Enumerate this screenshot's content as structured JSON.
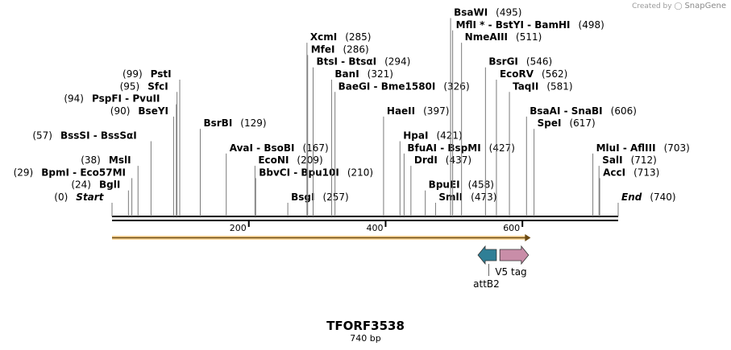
{
  "credit": {
    "prefix": "Created by",
    "brand": "SnapGene"
  },
  "map": {
    "name": "TFORF3538",
    "length_label": "740 bp",
    "length_bp": 740
  },
  "ruler": {
    "ticks": [
      {
        "bp": 200,
        "label": "200"
      },
      {
        "bp": 400,
        "label": "400"
      },
      {
        "bp": 600,
        "label": "600"
      }
    ]
  },
  "sites": [
    {
      "parts": [
        {
          "t": "(0)",
          "k": "pos"
        },
        {
          "t": "Start",
          "k": "ital"
        }
      ],
      "bp": 0,
      "row": 0,
      "side": "left"
    },
    {
      "parts": [
        {
          "t": "(24)",
          "k": "pos"
        },
        {
          "t": "BglI",
          "k": "enz"
        }
      ],
      "bp": 24,
      "row": 1,
      "side": "left"
    },
    {
      "parts": [
        {
          "t": "(29)",
          "k": "pos"
        },
        {
          "t": "BpmI",
          "k": "enz"
        },
        {
          "t": " - ",
          "k": "enz"
        },
        {
          "t": "Eco57MI",
          "k": "enz"
        }
      ],
      "bp": 29,
      "row": 2,
      "side": "left"
    },
    {
      "parts": [
        {
          "t": "(38)",
          "k": "pos"
        },
        {
          "t": "MslI",
          "k": "enz"
        }
      ],
      "bp": 38,
      "row": 3,
      "side": "left"
    },
    {
      "parts": [
        {
          "t": "(57)",
          "k": "pos"
        },
        {
          "t": "BssSI",
          "k": "enz"
        },
        {
          "t": " - ",
          "k": "enz"
        },
        {
          "t": "BssSαI",
          "k": "enz"
        }
      ],
      "bp": 57,
      "row": 5,
      "side": "left"
    },
    {
      "parts": [
        {
          "t": "(90)",
          "k": "pos"
        },
        {
          "t": "BseYI",
          "k": "enz"
        }
      ],
      "bp": 90,
      "row": 7,
      "side": "left"
    },
    {
      "parts": [
        {
          "t": "(94)",
          "k": "pos"
        },
        {
          "t": "PspFI",
          "k": "enz"
        },
        {
          "t": " - ",
          "k": "enz"
        },
        {
          "t": "PvuII",
          "k": "enz"
        }
      ],
      "bp": 94,
      "row": 8,
      "side": "left"
    },
    {
      "parts": [
        {
          "t": "(95)",
          "k": "pos"
        },
        {
          "t": "SfcI",
          "k": "enz"
        }
      ],
      "bp": 95,
      "row": 9,
      "side": "left"
    },
    {
      "parts": [
        {
          "t": "(99)",
          "k": "pos"
        },
        {
          "t": "PstI",
          "k": "enz"
        }
      ],
      "bp": 99,
      "row": 10,
      "side": "left"
    },
    {
      "parts": [
        {
          "t": "BsrBI",
          "k": "enz"
        },
        {
          "t": "(129)",
          "k": "pos"
        }
      ],
      "bp": 129,
      "row": 6,
      "side": "right"
    },
    {
      "parts": [
        {
          "t": "AvaI",
          "k": "enz"
        },
        {
          "t": " - ",
          "k": "enz"
        },
        {
          "t": "BsoBI",
          "k": "enz"
        },
        {
          "t": "(167)",
          "k": "pos"
        }
      ],
      "bp": 167,
      "row": 4,
      "side": "right"
    },
    {
      "parts": [
        {
          "t": "EcoNI",
          "k": "enz"
        },
        {
          "t": "(209)",
          "k": "pos"
        }
      ],
      "bp": 209,
      "row": 3,
      "side": "right"
    },
    {
      "parts": [
        {
          "t": "BbvCI",
          "k": "enz"
        },
        {
          "t": " - ",
          "k": "enz"
        },
        {
          "t": "Bpu10I",
          "k": "enz"
        },
        {
          "t": "(210)",
          "k": "pos"
        }
      ],
      "bp": 210,
      "row": 2,
      "side": "right",
      "offset": true
    },
    {
      "parts": [
        {
          "t": "BsgI",
          "k": "enz"
        },
        {
          "t": "(257)",
          "k": "pos"
        }
      ],
      "bp": 257,
      "row": 0,
      "side": "right"
    },
    {
      "parts": [
        {
          "t": "XcmI",
          "k": "enz"
        },
        {
          "t": "(285)",
          "k": "pos"
        }
      ],
      "bp": 285,
      "row": 13,
      "side": "right"
    },
    {
      "parts": [
        {
          "t": "MfeI",
          "k": "enz"
        },
        {
          "t": "(286)",
          "k": "pos"
        }
      ],
      "bp": 286,
      "row": 12,
      "side": "right"
    },
    {
      "parts": [
        {
          "t": "BtsI",
          "k": "enz"
        },
        {
          "t": " - ",
          "k": "enz"
        },
        {
          "t": "BtsαI",
          "k": "enz"
        },
        {
          "t": "(294)",
          "k": "pos"
        }
      ],
      "bp": 294,
      "row": 11,
      "side": "right"
    },
    {
      "parts": [
        {
          "t": "BanI",
          "k": "enz"
        },
        {
          "t": "(321)",
          "k": "pos"
        }
      ],
      "bp": 321,
      "row": 10,
      "side": "right"
    },
    {
      "parts": [
        {
          "t": "BaeGI",
          "k": "enz"
        },
        {
          "t": " - ",
          "k": "enz"
        },
        {
          "t": "Bme1580I",
          "k": "enz"
        },
        {
          "t": "(326)",
          "k": "pos"
        }
      ],
      "bp": 326,
      "row": 9,
      "side": "right"
    },
    {
      "parts": [
        {
          "t": "HaeII",
          "k": "enz"
        },
        {
          "t": "(397)",
          "k": "pos"
        }
      ],
      "bp": 397,
      "row": 7,
      "side": "right"
    },
    {
      "parts": [
        {
          "t": "HpaI",
          "k": "enz"
        },
        {
          "t": "(421)",
          "k": "pos"
        }
      ],
      "bp": 421,
      "row": 5,
      "side": "right"
    },
    {
      "parts": [
        {
          "t": "BfuAI",
          "k": "enz"
        },
        {
          "t": " - ",
          "k": "enz"
        },
        {
          "t": "BspMI",
          "k": "enz"
        },
        {
          "t": "(427)",
          "k": "pos"
        }
      ],
      "bp": 427,
      "row": 4,
      "side": "right",
      "offset": true
    },
    {
      "parts": [
        {
          "t": "DrdI",
          "k": "enz"
        },
        {
          "t": "(437)",
          "k": "pos"
        }
      ],
      "bp": 437,
      "row": 3,
      "side": "right"
    },
    {
      "parts": [
        {
          "t": "BpuEI",
          "k": "enz"
        },
        {
          "t": "(458)",
          "k": "pos"
        }
      ],
      "bp": 458,
      "row": 1,
      "side": "right"
    },
    {
      "parts": [
        {
          "t": "SmlI",
          "k": "enz"
        },
        {
          "t": "(473)",
          "k": "pos"
        }
      ],
      "bp": 473,
      "row": 0,
      "side": "right"
    },
    {
      "parts": [
        {
          "t": "BsaWI",
          "k": "enz"
        },
        {
          "t": "(495)",
          "k": "pos"
        }
      ],
      "bp": 495,
      "row": 15,
      "side": "right"
    },
    {
      "parts": [
        {
          "t": "MflI *",
          "k": "enz"
        },
        {
          "t": " - ",
          "k": "enz"
        },
        {
          "t": "BstYI",
          "k": "enz"
        },
        {
          "t": " - ",
          "k": "enz"
        },
        {
          "t": "BamHI",
          "k": "enz"
        },
        {
          "t": "(498)",
          "k": "pos"
        }
      ],
      "bp": 498,
      "row": 14,
      "side": "right"
    },
    {
      "parts": [
        {
          "t": "NmeAIII",
          "k": "enz"
        },
        {
          "t": "(511)",
          "k": "pos"
        }
      ],
      "bp": 511,
      "row": 13,
      "side": "right"
    },
    {
      "parts": [
        {
          "t": "BsrGI",
          "k": "enz"
        },
        {
          "t": "(546)",
          "k": "pos"
        }
      ],
      "bp": 546,
      "row": 11,
      "side": "right"
    },
    {
      "parts": [
        {
          "t": "EcoRV",
          "k": "enz"
        },
        {
          "t": "(562)",
          "k": "pos"
        }
      ],
      "bp": 562,
      "row": 10,
      "side": "right"
    },
    {
      "parts": [
        {
          "t": "TaqII",
          "k": "enz"
        },
        {
          "t": "(581)",
          "k": "pos"
        }
      ],
      "bp": 581,
      "row": 9,
      "side": "right"
    },
    {
      "parts": [
        {
          "t": "BsaAI",
          "k": "enz"
        },
        {
          "t": " - ",
          "k": "enz"
        },
        {
          "t": "SnaBI",
          "k": "enz"
        },
        {
          "t": "(606)",
          "k": "pos"
        }
      ],
      "bp": 606,
      "row": 7,
      "side": "right"
    },
    {
      "parts": [
        {
          "t": "SpeI",
          "k": "enz"
        },
        {
          "t": "(617)",
          "k": "pos"
        }
      ],
      "bp": 617,
      "row": 6,
      "side": "right"
    },
    {
      "parts": [
        {
          "t": "MluI",
          "k": "enz"
        },
        {
          "t": " - ",
          "k": "enz"
        },
        {
          "t": "AflIII",
          "k": "enz"
        },
        {
          "t": "(703)",
          "k": "pos"
        }
      ],
      "bp": 703,
      "row": 4,
      "side": "right"
    },
    {
      "parts": [
        {
          "t": "SalI",
          "k": "enz"
        },
        {
          "t": "(712)",
          "k": "pos"
        }
      ],
      "bp": 712,
      "row": 3,
      "side": "right"
    },
    {
      "parts": [
        {
          "t": "AccI",
          "k": "enz"
        },
        {
          "t": "(713)",
          "k": "pos"
        }
      ],
      "bp": 713,
      "row": 2,
      "side": "right"
    },
    {
      "parts": [
        {
          "t": "End",
          "k": "ital"
        },
        {
          "t": "(740)",
          "k": "pos"
        }
      ],
      "bp": 740,
      "row": 0,
      "side": "right"
    }
  ],
  "orf": {
    "start_bp": 0,
    "end_bp": 612,
    "color": "#f5a623"
  },
  "features": [
    {
      "name": "attB2",
      "start_bp": 535,
      "end_bp": 562,
      "direction": "reverse",
      "color": "#2f7f96"
    },
    {
      "name": "V5 tag",
      "start_bp": 567,
      "end_bp": 609,
      "direction": "forward",
      "color": "#c98da8"
    }
  ]
}
